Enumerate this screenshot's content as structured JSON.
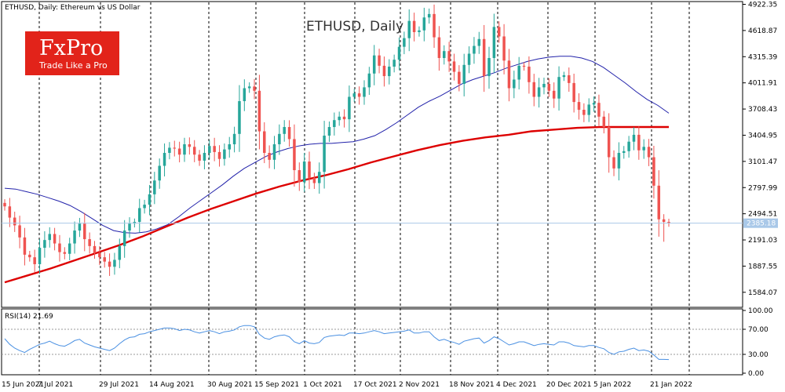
{
  "header": {
    "symbol_line": "ETHUSD, Daily:  Ethereum vs US Dollar",
    "big_title": "ETHUSD, Daily"
  },
  "logo": {
    "name": "FxPro",
    "tagline": "Trade Like a Pro",
    "color": "#e2231a"
  },
  "colors": {
    "bull": "#26a69a",
    "bear": "#ef5350",
    "ma_slow": "#dd0000",
    "ma_fast": "#2222aa",
    "rsi": "#4a90e2",
    "price_line": "#a9c8e8",
    "price_tag": "#a9c8e8"
  },
  "chart_data": [
    {
      "type": "candlestick",
      "title": "ETHUSD, Daily",
      "ylim": [
        1428.0,
        4936.0
      ],
      "y_ticks": [
        "4922.35",
        "4618.87",
        "4315.39",
        "4011.91",
        "3708.43",
        "3404.95",
        "3101.47",
        "2797.99",
        "2494.51",
        "2191.03",
        "1887.55",
        "1584.07"
      ],
      "x_ticks": [
        "15 Jun 2021",
        "7 Jul 2021",
        "29 Jul 2021",
        "14 Aug 2021",
        "30 Aug 2021",
        "15 Sep 2021",
        "1 Oct 2021",
        "17 Oct 2021",
        "2 Nov 2021",
        "18 Nov 2021",
        "4 Dec 2021",
        "20 Dec 2021",
        "5 Jan 2022",
        "21 Jan 2022"
      ],
      "grid": "vertical dashed separators",
      "current_price": "2385.18",
      "close_series": [
        2580,
        2450,
        2360,
        2220,
        2020,
        1990,
        1910,
        2100,
        2190,
        2260,
        2150,
        2050,
        2030,
        2150,
        2300,
        2380,
        2200,
        2120,
        2040,
        1990,
        1940,
        1880,
        1960,
        2120,
        2300,
        2380,
        2400,
        2560,
        2600,
        2720,
        2880,
        3050,
        3200,
        3260,
        3250,
        3180,
        3300,
        3270,
        3180,
        3110,
        3200,
        3280,
        3210,
        3130,
        3240,
        3300,
        3420,
        3800,
        3950,
        3970,
        3920,
        3450,
        3200,
        3120,
        3300,
        3420,
        3500,
        3360,
        3000,
        2860,
        3100,
        2910,
        2850,
        2980,
        3400,
        3500,
        3580,
        3620,
        3590,
        3850,
        3890,
        3850,
        3960,
        4120,
        4330,
        4210,
        4090,
        4200,
        4280,
        4430,
        4530,
        4730,
        4600,
        4620,
        4770,
        4810,
        4540,
        4300,
        4380,
        4260,
        4140,
        4000,
        4220,
        4350,
        4440,
        4520,
        4090,
        4300,
        4660,
        4550,
        4270,
        3950,
        4050,
        4210,
        4200,
        4020,
        3850,
        3960,
        4000,
        3920,
        3830,
        4080,
        4100,
        4010,
        3790,
        3700,
        3640,
        3760,
        3780,
        3620,
        3500,
        3150,
        3020,
        3200,
        3220,
        3330,
        3410,
        3230,
        3270,
        3150,
        2820,
        2430,
        2400,
        2385
      ],
      "rsi_series": {
        "label": "RSI(14) 21.69",
        "ylim": [
          0,
          100
        ],
        "ticks": [
          "100.00",
          "70.00",
          "30.00",
          "0.00"
        ],
        "levels": [
          70,
          30
        ],
        "values": [
          55,
          46,
          40,
          36,
          33,
          38,
          42,
          46,
          48,
          51,
          47,
          44,
          43,
          47,
          52,
          54,
          48,
          45,
          42,
          40,
          38,
          36,
          40,
          47,
          53,
          57,
          58,
          62,
          63,
          66,
          68,
          70,
          72,
          72,
          71,
          68,
          70,
          69,
          66,
          64,
          66,
          68,
          66,
          63,
          66,
          67,
          69,
          74,
          76,
          76,
          74,
          62,
          56,
          54,
          58,
          60,
          61,
          58,
          50,
          47,
          52,
          48,
          47,
          49,
          57,
          59,
          60,
          61,
          60,
          64,
          64,
          63,
          64,
          66,
          68,
          66,
          63,
          64,
          65,
          66,
          67,
          69,
          64,
          64,
          66,
          66,
          58,
          52,
          54,
          51,
          49,
          46,
          51,
          53,
          55,
          56,
          48,
          52,
          58,
          55,
          50,
          45,
          47,
          50,
          50,
          47,
          44,
          46,
          47,
          46,
          45,
          50,
          50,
          48,
          44,
          43,
          42,
          44,
          44,
          41,
          39,
          33,
          30,
          34,
          35,
          38,
          40,
          36,
          37,
          35,
          29,
          22,
          22,
          21.69
        ]
      },
      "series": [
        {
          "name": "",
          "values": [
            2790,
            2780,
            2750,
            2720,
            2680,
            2640,
            2590,
            2520,
            2440,
            2360,
            2300,
            2275,
            2270,
            2285,
            2320,
            2370,
            2460,
            2560,
            2650,
            2740,
            2830,
            2930,
            3020,
            3090,
            3160,
            3210,
            3250,
            3280,
            3300,
            3310,
            3310,
            3320,
            3330,
            3360,
            3400,
            3470,
            3550,
            3640,
            3730,
            3800,
            3860,
            3930,
            4000,
            4050,
            4090,
            4130,
            4180,
            4220,
            4260,
            4290,
            4310,
            4320,
            4320,
            4300,
            4260,
            4190,
            4100,
            4010,
            3910,
            3820,
            3750,
            3660
          ]
        },
        {
          "name": "",
          "values": [
            1700,
            1780,
            1860,
            1950,
            2040,
            2130,
            2230,
            2340,
            2450,
            2550,
            2640,
            2730,
            2810,
            2880,
            2940,
            3010,
            3090,
            3160,
            3230,
            3290,
            3340,
            3380,
            3410,
            3450,
            3470,
            3490,
            3500,
            3500,
            3500,
            3500
          ]
        }
      ]
    }
  ]
}
